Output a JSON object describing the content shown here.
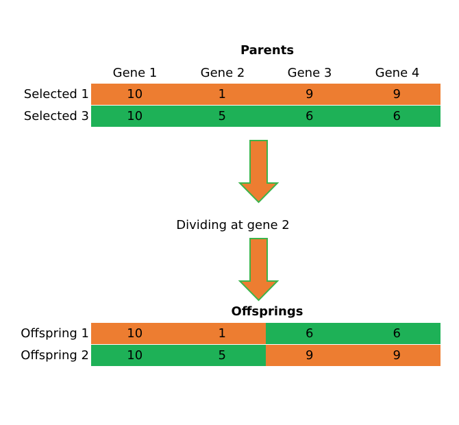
{
  "parents": {
    "title": "Parents",
    "genes": [
      "Gene 1",
      "Gene 2",
      "Gene 3",
      "Gene 4"
    ],
    "rows": [
      {
        "label": "Selected 1",
        "values": [
          "10",
          "1",
          "9",
          "9"
        ],
        "colors": [
          "orange",
          "orange",
          "orange",
          "orange"
        ]
      },
      {
        "label": "Selected 3",
        "values": [
          "10",
          "5",
          "6",
          "6"
        ],
        "colors": [
          "green",
          "green",
          "green",
          "green"
        ]
      }
    ]
  },
  "step": {
    "caption": "Dividing at gene 2"
  },
  "offsprings": {
    "title": "Offsprings",
    "rows": [
      {
        "label": "Offspring 1",
        "values": [
          "10",
          "1",
          "6",
          "6"
        ],
        "colors": [
          "orange",
          "orange",
          "green",
          "green"
        ]
      },
      {
        "label": "Offspring 2",
        "values": [
          "10",
          "5",
          "9",
          "9"
        ],
        "colors": [
          "green",
          "green",
          "orange",
          "orange"
        ]
      }
    ]
  },
  "colors": {
    "orange": "#ed7d31",
    "green": "#1eb157",
    "arrow_fill": "#ed7d31",
    "arrow_stroke": "#3cb44b"
  }
}
